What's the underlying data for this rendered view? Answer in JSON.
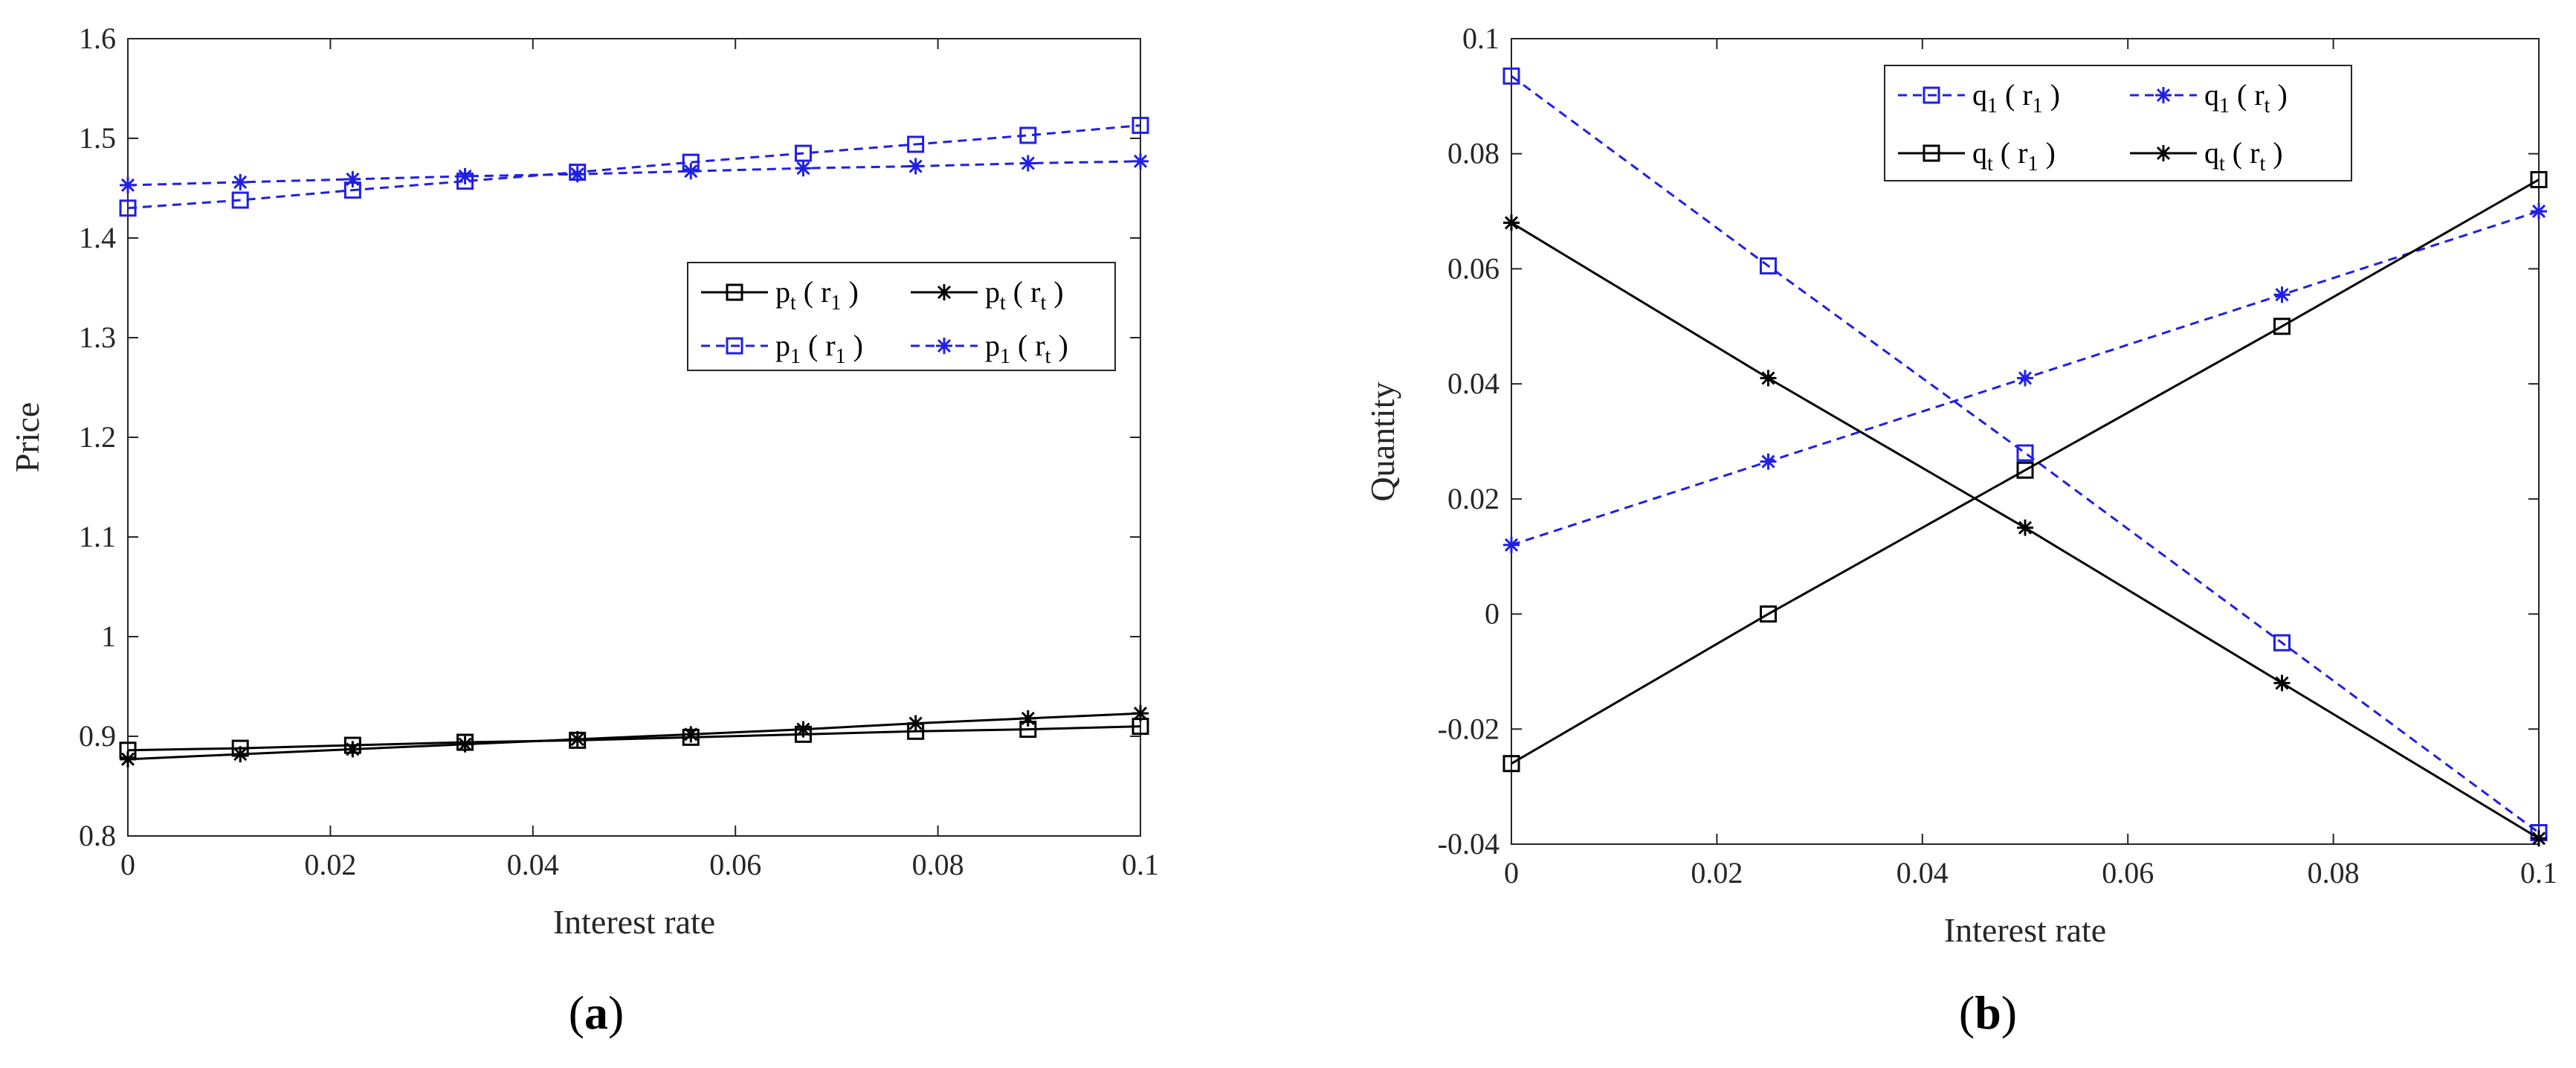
{
  "chart_data": [
    {
      "type": "line",
      "panel_label": "a",
      "xlabel": "Interest rate",
      "ylabel": "Price",
      "xlim": [
        0,
        0.1
      ],
      "ylim": [
        0.8,
        1.6
      ],
      "xticks": [
        "0",
        "0.02",
        "0.04",
        "0.06",
        "0.08",
        "0.1"
      ],
      "yticks": [
        "0.8",
        "0.9",
        "1",
        "1.1",
        "1.2",
        "1.3",
        "1.4",
        "1.5",
        "1.6"
      ],
      "x": [
        0,
        0.0111,
        0.0222,
        0.0333,
        0.0444,
        0.0556,
        0.0667,
        0.0778,
        0.0889,
        0.1
      ],
      "legend_position": "center-right",
      "series": [
        {
          "name": "p_t(r_1)",
          "base": "p",
          "sub1": "t",
          "arg": "r",
          "sub2": "1",
          "color": "#000000",
          "dash": "solid",
          "marker": "square",
          "values": [
            0.886,
            0.888,
            0.891,
            0.894,
            0.896,
            0.899,
            0.902,
            0.905,
            0.907,
            0.91
          ]
        },
        {
          "name": "p_t(r_t)",
          "base": "p",
          "sub1": "t",
          "arg": "r",
          "sub2": "t",
          "color": "#000000",
          "dash": "solid",
          "marker": "star",
          "values": [
            0.877,
            0.882,
            0.887,
            0.892,
            0.897,
            0.902,
            0.907,
            0.913,
            0.918,
            0.923
          ]
        },
        {
          "name": "p_1(r_1)",
          "base": "p",
          "sub1": "1",
          "arg": "r",
          "sub2": "1",
          "color": "#1f1fe6",
          "dash": "dashed",
          "marker": "square",
          "values": [
            1.43,
            1.438,
            1.448,
            1.457,
            1.466,
            1.476,
            1.485,
            1.494,
            1.503,
            1.513
          ]
        },
        {
          "name": "p_1(r_t)",
          "base": "p",
          "sub1": "1",
          "arg": "r",
          "sub2": "t",
          "color": "#1f1fe6",
          "dash": "dashed",
          "marker": "star",
          "values": [
            1.453,
            1.456,
            1.459,
            1.462,
            1.464,
            1.467,
            1.47,
            1.472,
            1.475,
            1.477
          ]
        }
      ]
    },
    {
      "type": "line",
      "panel_label": "b",
      "xlabel": "Interest rate",
      "ylabel": "Quantity",
      "xlim": [
        0,
        0.1
      ],
      "ylim": [
        -0.04,
        0.1
      ],
      "xticks": [
        "0",
        "0.02",
        "0.04",
        "0.06",
        "0.08",
        "0.1"
      ],
      "yticks": [
        "-0.04",
        "-0.02",
        "0",
        "0.02",
        "0.04",
        "0.06",
        "0.08",
        "0.1"
      ],
      "x": [
        0,
        0.025,
        0.05,
        0.075,
        0.1
      ],
      "legend_position": "top-center",
      "series": [
        {
          "name": "q_1(r_1)",
          "base": "q",
          "sub1": "1",
          "arg": "r",
          "sub2": "1",
          "color": "#1f1fe6",
          "dash": "dashed",
          "marker": "square",
          "values": [
            0.0935,
            0.0605,
            0.028,
            -0.005,
            -0.038
          ]
        },
        {
          "name": "q_1(r_t)",
          "base": "q",
          "sub1": "1",
          "arg": "r",
          "sub2": "t",
          "color": "#1f1fe6",
          "dash": "dashed",
          "marker": "star",
          "values": [
            0.012,
            0.0265,
            0.041,
            0.0555,
            0.07
          ]
        },
        {
          "name": "q_t(r_1)",
          "base": "q",
          "sub1": "t",
          "arg": "r",
          "sub2": "1",
          "color": "#000000",
          "dash": "solid",
          "marker": "square",
          "values": [
            -0.026,
            0.0,
            0.025,
            0.05,
            0.0755
          ]
        },
        {
          "name": "q_t(r_t)",
          "base": "q",
          "sub1": "t",
          "arg": "r",
          "sub2": "t",
          "color": "#000000",
          "dash": "solid",
          "marker": "star",
          "values": [
            0.068,
            0.041,
            0.015,
            -0.012,
            -0.039
          ]
        }
      ]
    }
  ]
}
